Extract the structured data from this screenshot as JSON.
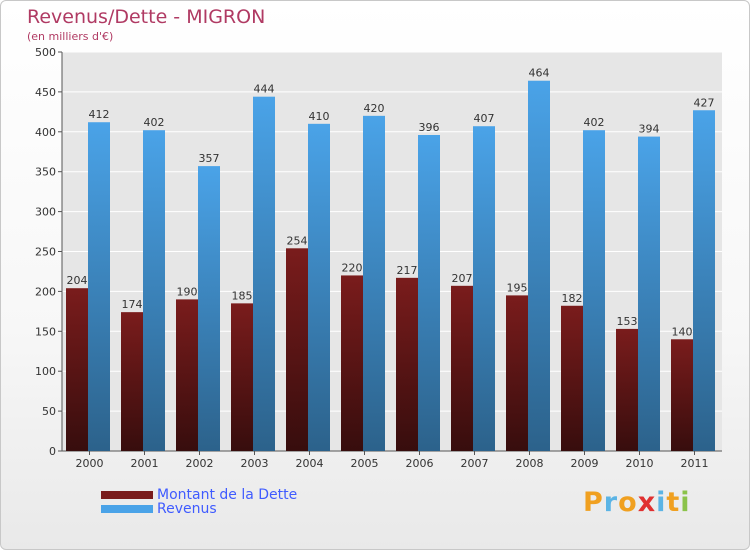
{
  "chart_data": {
    "type": "bar",
    "title": "Revenus/Dette - MIGRON",
    "subtitle": "(en milliers d'€)",
    "categories": [
      "2000",
      "2001",
      "2002",
      "2003",
      "2004",
      "2005",
      "2006",
      "2007",
      "2008",
      "2009",
      "2010",
      "2011"
    ],
    "series": [
      {
        "name": "Montant de la Dette",
        "values": [
          204,
          174,
          190,
          185,
          254,
          220,
          217,
          207,
          195,
          182,
          153,
          140
        ],
        "color": "#7a1c1c"
      },
      {
        "name": "Revenus",
        "values": [
          412,
          402,
          357,
          444,
          410,
          420,
          396,
          407,
          464,
          402,
          394,
          427
        ],
        "color": "#4aa3e8"
      }
    ],
    "ylim": [
      0,
      500
    ],
    "yticks": [
      0,
      50,
      100,
      150,
      200,
      250,
      300,
      350,
      400,
      450,
      500
    ],
    "grid": true,
    "legend": "bottom-left"
  },
  "logo": {
    "text": "Proxiti",
    "letters": [
      "P",
      "r",
      "o",
      "x",
      "i",
      "t",
      "i"
    ],
    "colors": [
      "#f0a020",
      "#5bb4e5",
      "#f0a020",
      "#e03030",
      "#5bb4e5",
      "#f0a020",
      "#8bc34a"
    ]
  }
}
